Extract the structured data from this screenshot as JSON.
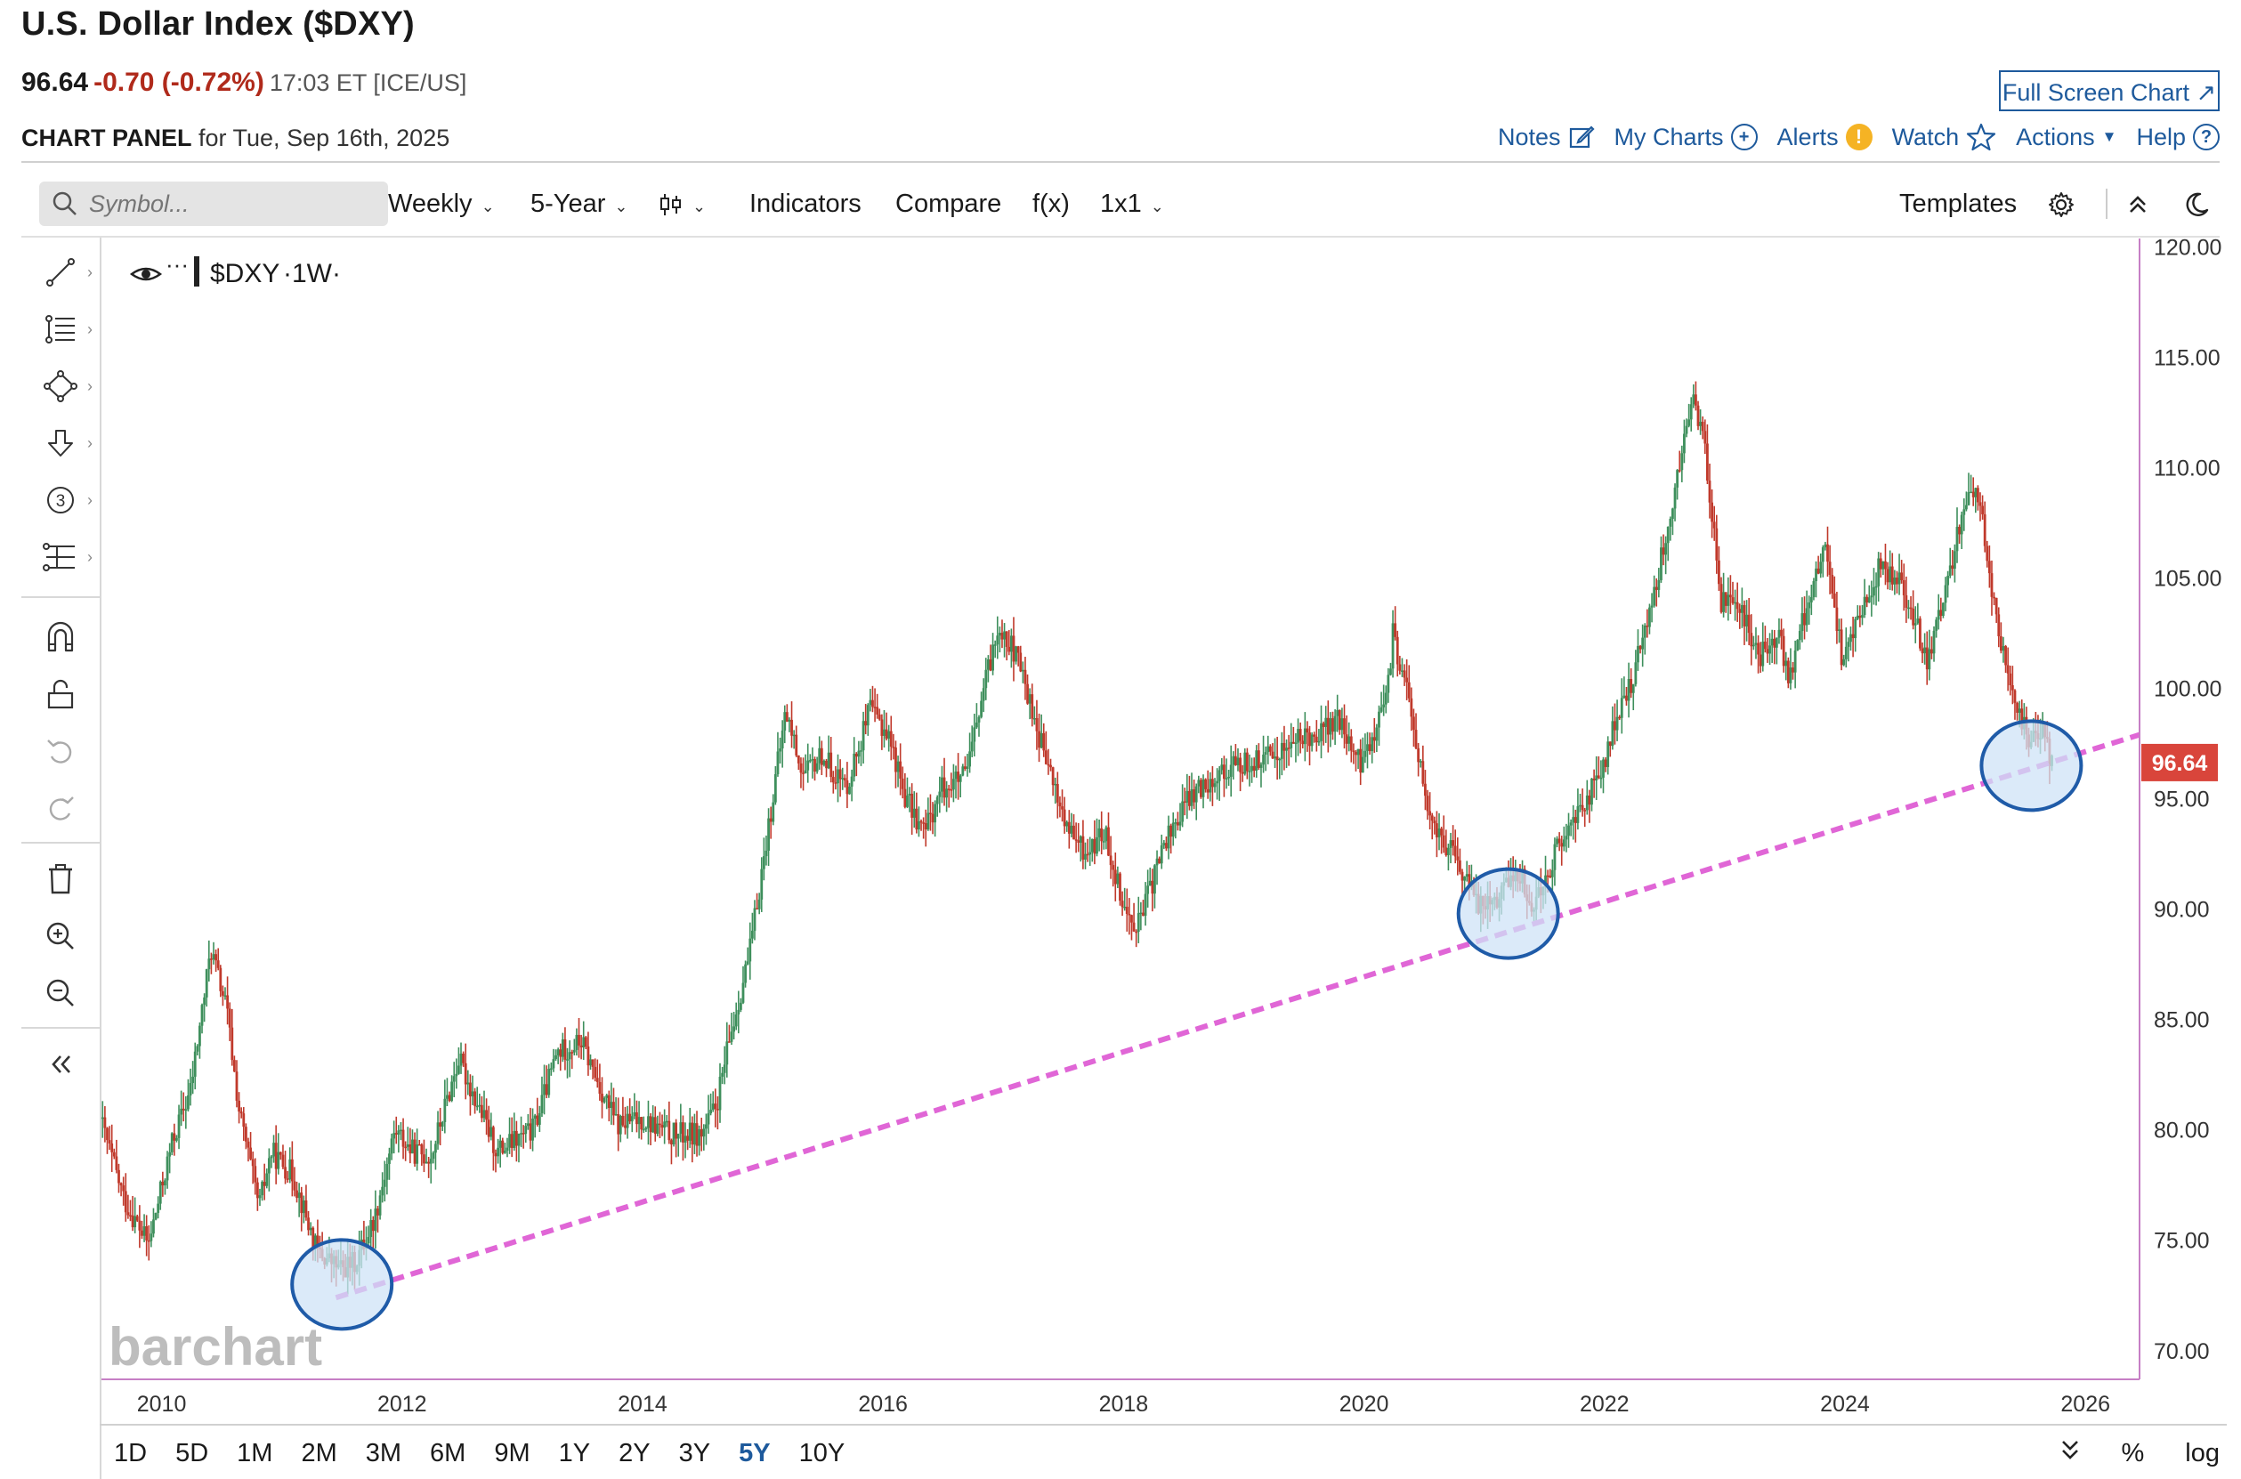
{
  "header": {
    "title": "U.S. Dollar Index ($DXY)",
    "last": "96.64",
    "change": "-0.70 (-0.72%)",
    "time": "17:03 ET [ICE/US]",
    "panel_label": "CHART PANEL",
    "panel_date": "for Tue, Sep 16th, 2025",
    "fullscreen": "Full Screen Chart"
  },
  "toplinks": {
    "notes": "Notes",
    "mycharts": "My Charts",
    "alerts": "Alerts",
    "watch": "Watch",
    "actions": "Actions",
    "help": "Help"
  },
  "toolbar": {
    "symbol_placeholder": "Symbol...",
    "interval": "Weekly",
    "period": "5-Year",
    "indicators": "Indicators",
    "compare": "Compare",
    "fx": "f(x)",
    "layout": "1x1",
    "templates": "Templates"
  },
  "legend": {
    "symbol": "$DXY",
    "interval": "·1W·"
  },
  "watermark": "barchart",
  "rangebar": {
    "items": [
      "1D",
      "5D",
      "1M",
      "2M",
      "3M",
      "6M",
      "9M",
      "1Y",
      "2Y",
      "3Y",
      "5Y",
      "10Y"
    ],
    "active": "5Y",
    "pct": "%",
    "log": "log"
  },
  "colors": {
    "up": "#3e8f5c",
    "down": "#c0392b",
    "trendline": "#e066d6",
    "circle_fill": "#cfe3f7",
    "circle_stroke": "#1f5ba8",
    "price_tag": "#d9453b",
    "link": "#1e5a9c"
  },
  "chart_data": {
    "type": "candlestick",
    "title": "U.S. Dollar Index ($DXY)",
    "interval": "Weekly",
    "last_price": 96.64,
    "x_ticks": [
      "2010",
      "2012",
      "2014",
      "2016",
      "2018",
      "2020",
      "2022",
      "2024",
      "2026"
    ],
    "y_ticks": [
      "70.00",
      "75.00",
      "80.00",
      "85.00",
      "90.00",
      "95.00",
      "100.00",
      "105.00",
      "110.00",
      "115.00",
      "120.00"
    ],
    "xlim": [
      2009.5,
      2026.45
    ],
    "ylim": [
      68.7,
      120.3
    ],
    "price_path": [
      [
        2009.5,
        80.5
      ],
      [
        2009.7,
        76.8
      ],
      [
        2009.9,
        74.8
      ],
      [
        2010.1,
        79.5
      ],
      [
        2010.25,
        81.8
      ],
      [
        2010.42,
        88.2
      ],
      [
        2010.55,
        85.5
      ],
      [
        2010.65,
        81.0
      ],
      [
        2010.82,
        76.5
      ],
      [
        2010.92,
        79.0
      ],
      [
        2011.1,
        78.0
      ],
      [
        2011.3,
        74.5
      ],
      [
        2011.5,
        73.7
      ],
      [
        2011.62,
        74.0
      ],
      [
        2011.78,
        76.0
      ],
      [
        2011.95,
        80.0
      ],
      [
        2012.1,
        79.0
      ],
      [
        2012.25,
        78.8
      ],
      [
        2012.48,
        83.2
      ],
      [
        2012.65,
        81.0
      ],
      [
        2012.8,
        79.0
      ],
      [
        2012.95,
        79.5
      ],
      [
        2013.1,
        80.0
      ],
      [
        2013.3,
        83.5
      ],
      [
        2013.5,
        84.0
      ],
      [
        2013.65,
        82.0
      ],
      [
        2013.8,
        80.2
      ],
      [
        2014.0,
        80.5
      ],
      [
        2014.25,
        79.8
      ],
      [
        2014.5,
        79.8
      ],
      [
        2014.62,
        81.0
      ],
      [
        2014.75,
        84.5
      ],
      [
        2014.9,
        88.0
      ],
      [
        2015.05,
        93.5
      ],
      [
        2015.2,
        99.0
      ],
      [
        2015.35,
        96.0
      ],
      [
        2015.5,
        97.0
      ],
      [
        2015.7,
        95.5
      ],
      [
        2015.9,
        99.0
      ],
      [
        2016.05,
        98.0
      ],
      [
        2016.2,
        95.0
      ],
      [
        2016.35,
        93.5
      ],
      [
        2016.5,
        95.5
      ],
      [
        2016.7,
        96.0
      ],
      [
        2016.85,
        100.0
      ],
      [
        2016.98,
        103.0
      ],
      [
        2017.15,
        101.0
      ],
      [
        2017.35,
        97.0
      ],
      [
        2017.55,
        93.5
      ],
      [
        2017.7,
        92.5
      ],
      [
        2017.85,
        93.5
      ],
      [
        2018.05,
        89.5
      ],
      [
        2018.15,
        89.5
      ],
      [
        2018.35,
        93.0
      ],
      [
        2018.55,
        95.0
      ],
      [
        2018.75,
        96.0
      ],
      [
        2018.95,
        96.5
      ],
      [
        2019.2,
        96.8
      ],
      [
        2019.4,
        97.5
      ],
      [
        2019.6,
        98.0
      ],
      [
        2019.8,
        98.5
      ],
      [
        2019.98,
        96.5
      ],
      [
        2020.2,
        99.5
      ],
      [
        2020.25,
        102.5
      ],
      [
        2020.4,
        99.0
      ],
      [
        2020.55,
        94.0
      ],
      [
        2020.75,
        92.5
      ],
      [
        2020.95,
        90.3
      ],
      [
        2021.1,
        90.5
      ],
      [
        2021.3,
        91.8
      ],
      [
        2021.4,
        90.0
      ],
      [
        2021.6,
        92.5
      ],
      [
        2021.8,
        94.5
      ],
      [
        2021.98,
        96.0
      ],
      [
        2022.1,
        98.5
      ],
      [
        2022.25,
        100.5
      ],
      [
        2022.4,
        104.0
      ],
      [
        2022.55,
        107.5
      ],
      [
        2022.7,
        112.0
      ],
      [
        2022.75,
        113.5
      ],
      [
        2022.85,
        110.5
      ],
      [
        2022.98,
        104.0
      ],
      [
        2023.15,
        103.5
      ],
      [
        2023.3,
        101.5
      ],
      [
        2023.45,
        102.5
      ],
      [
        2023.55,
        100.5
      ],
      [
        2023.7,
        104.0
      ],
      [
        2023.85,
        106.5
      ],
      [
        2023.98,
        101.5
      ],
      [
        2024.15,
        103.5
      ],
      [
        2024.3,
        105.5
      ],
      [
        2024.45,
        105.0
      ],
      [
        2024.6,
        103.0
      ],
      [
        2024.7,
        101.0
      ],
      [
        2024.85,
        104.5
      ],
      [
        2024.98,
        108.0
      ],
      [
        2025.05,
        109.5
      ],
      [
        2025.15,
        107.5
      ],
      [
        2025.3,
        102.0
      ],
      [
        2025.45,
        99.0
      ],
      [
        2025.55,
        97.5
      ],
      [
        2025.65,
        98.0
      ],
      [
        2025.72,
        96.64
      ]
    ],
    "annotations": {
      "trendline": {
        "from": [
          2011.45,
          72.4
        ],
        "to": [
          2026.45,
          97.9
        ],
        "style": "dashed"
      },
      "circles": [
        {
          "x": 2011.5,
          "y": 73.0
        },
        {
          "x": 2021.2,
          "y": 89.8
        },
        {
          "x": 2025.55,
          "y": 96.5
        }
      ]
    }
  }
}
